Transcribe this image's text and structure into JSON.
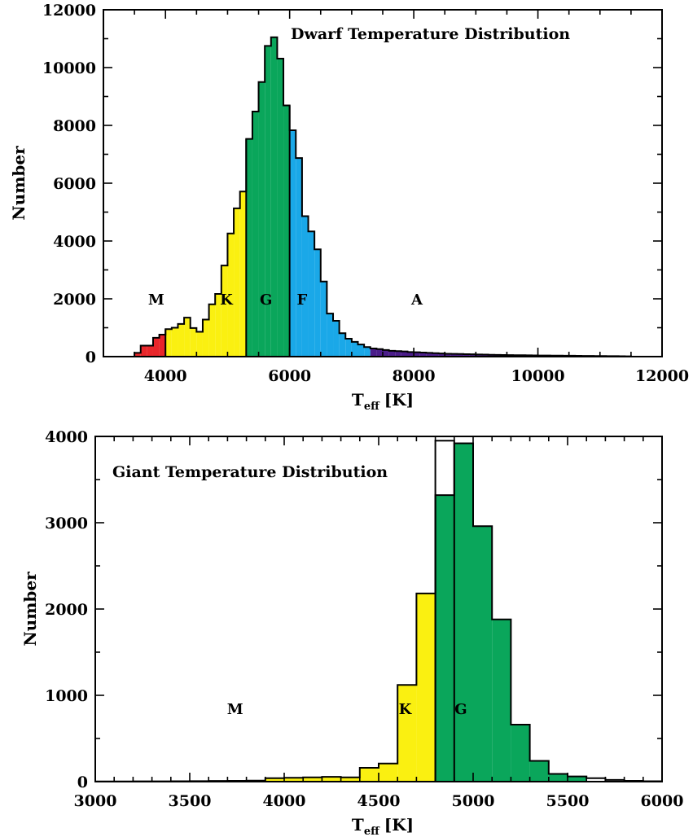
{
  "chart_data": [
    {
      "type": "bar",
      "title": "Dwarf Temperature Distribution",
      "xlabel": "T",
      "xlabel_sub": "eff",
      "xlabel_unit": "[K]",
      "ylabel": "Number",
      "xlim": [
        3000,
        12000
      ],
      "ylim": [
        0,
        12000
      ],
      "xticks": [
        4000,
        6000,
        8000,
        10000,
        12000
      ],
      "xminor": 500,
      "yticks": [
        0,
        2000,
        4000,
        6000,
        8000,
        10000,
        12000
      ],
      "yminor": 1000,
      "bin_width": 100,
      "bin_start": 3500,
      "values": [
        130,
        380,
        380,
        650,
        760,
        950,
        1000,
        1130,
        1350,
        990,
        860,
        1280,
        1810,
        2170,
        3150,
        4260,
        5130,
        5710,
        7530,
        8480,
        9500,
        10750,
        11050,
        10310,
        8690,
        7830,
        6870,
        4860,
        4330,
        3710,
        2600,
        1490,
        1240,
        810,
        620,
        510,
        420,
        330,
        280,
        260,
        230,
        200,
        190,
        180,
        160,
        150,
        140,
        130,
        120,
        110,
        100,
        95,
        90,
        85,
        80,
        75,
        70,
        65,
        60,
        55,
        52,
        50,
        48,
        45,
        42,
        40,
        38,
        36,
        34,
        32,
        30,
        28,
        26,
        24,
        22,
        20,
        18,
        16,
        14,
        12
      ],
      "classes": [
        {
          "label": "M",
          "from": 3500,
          "to": 4000,
          "color": "#e8262a",
          "label_x": 3850,
          "label_y": 2000
        },
        {
          "label": "K",
          "from": 4000,
          "to": 5300,
          "color": "#faf011",
          "label_x": 4980,
          "label_y": 2000
        },
        {
          "label": "G",
          "from": 5300,
          "to": 6000,
          "color": "#0aa65b",
          "label_x": 5620,
          "label_y": 2000
        },
        {
          "label": "F",
          "from": 6000,
          "to": 7300,
          "color": "#1aa8e8",
          "label_x": 6200,
          "label_y": 2000
        },
        {
          "label": "A",
          "from": 7300,
          "to": 11500,
          "color": "#4b1d8a",
          "label_x": 8050,
          "label_y": 2000
        }
      ],
      "dividers": [
        4000,
        5300,
        6000
      ]
    },
    {
      "type": "bar",
      "title": "Giant Temperature Distribution",
      "xlabel": "T",
      "xlabel_sub": "eff",
      "xlabel_unit": "[K]",
      "ylabel": "Number",
      "xlim": [
        3000,
        6000
      ],
      "ylim": [
        0,
        4000
      ],
      "xticks": [
        3000,
        3500,
        4000,
        4500,
        5000,
        5500,
        6000
      ],
      "xminor": 100,
      "yticks": [
        0,
        1000,
        2000,
        3000,
        4000
      ],
      "yminor": 500,
      "bin_width": 100,
      "bin_start": 3000,
      "values": [
        2,
        2,
        3,
        3,
        5,
        6,
        8,
        10,
        12,
        40,
        45,
        50,
        55,
        50,
        160,
        210,
        1120,
        2180,
        3320,
        3920,
        2960,
        1880,
        660,
        240,
        90,
        60,
        40,
        20,
        10,
        5
      ],
      "outline_extra": {
        "from": 4800,
        "to": 4900,
        "value": 3950
      },
      "classes": [
        {
          "label": "M",
          "from": 3000,
          "to": 3900,
          "color": "#e8262a",
          "label_x": 3740,
          "label_y": 850
        },
        {
          "label": "K",
          "from": 3900,
          "to": 4800,
          "color": "#faf011",
          "label_x": 4640,
          "label_y": 850
        },
        {
          "label": "G",
          "from": 4800,
          "to": 5600,
          "color": "#0aa65b",
          "label_x": 4935,
          "label_y": 850
        }
      ],
      "dividers": [
        4800
      ]
    }
  ]
}
